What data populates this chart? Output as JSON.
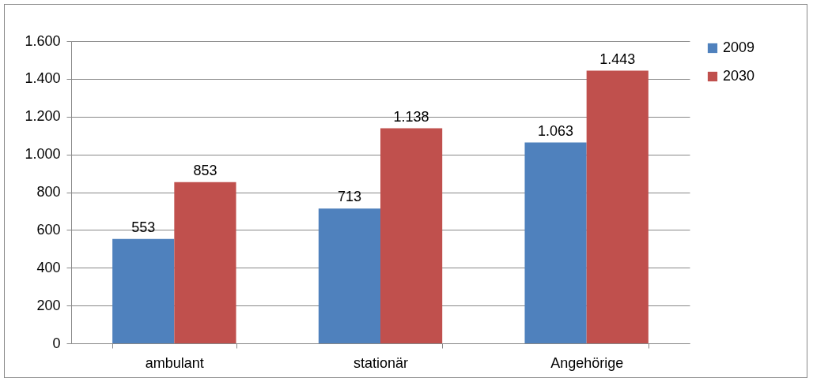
{
  "chart_data": {
    "type": "bar",
    "categories": [
      "ambulant",
      "stationär",
      "Angehörige"
    ],
    "series": [
      {
        "name": "2009",
        "color": "#4f81bd",
        "values": [
          553,
          713,
          1063
        ],
        "value_labels": [
          "553",
          "713",
          "1.063"
        ]
      },
      {
        "name": "2030",
        "color": "#c0504d",
        "values": [
          853,
          1138,
          1443
        ],
        "value_labels": [
          "853",
          "1.138",
          "1.443"
        ]
      }
    ],
    "ylim": [
      0,
      1600
    ],
    "yticks": [
      0,
      200,
      400,
      600,
      800,
      {
        "value": 1000,
        "label": "1.000"
      },
      {
        "value": 1200,
        "label": "1.200"
      },
      {
        "value": 1400,
        "label": "1.400"
      },
      {
        "value": 1600,
        "label": "1.600"
      }
    ],
    "grid": "y",
    "legend": "right"
  }
}
